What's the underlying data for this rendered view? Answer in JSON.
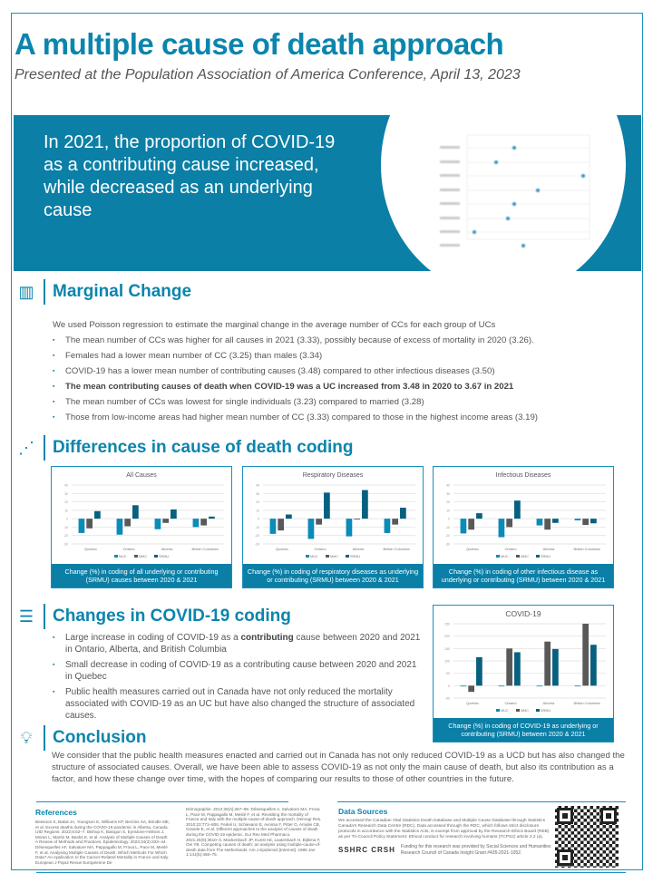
{
  "title": "A multiple cause of death approach",
  "subtitle": "Presented at the Population Association of America Conference, April 13, 2023",
  "hero": {
    "text": "In 2021, the proportion of COVID-19 as a contributing cause increased, while decreased as an underlying cause"
  },
  "marginal": {
    "heading": "Marginal Change",
    "intro": "We used Poisson regression to estimate the marginal change in the average number of CCs for each group of UCs",
    "bullets": [
      "The mean number of CCs was higher for all causes in 2021 (3.33), possibly because of excess of mortality in 2020 (3.26).",
      "Females had a lower mean number of CC (3.25) than males (3.34)",
      "COVID-19 has a lower mean number of contributing causes (3.48) compared to other infectious diseases (3.50)",
      "The mean contributing causes of death when COVID-19 was a UC increased from 3.48 in 2020 to 3.67 in 2021",
      "The mean number of CCs was lowest for single individuals (3.23) compared to married (3.28)",
      "Those from low-income areas had higher mean number of CC (3.33) compared to those in the highest income areas (3.19)"
    ]
  },
  "differences": {
    "heading": "Differences in cause of death coding"
  },
  "covid": {
    "heading": "Changes in COVID-19 coding",
    "b1_pre": "Large increase in coding of COVID-19 as a ",
    "b1_bold": "contributing",
    "b1_post": " cause between 2020 and 2021 in Ontario, Alberta, and British Columbia",
    "b2": "Small decrease in coding of COVID-19 as a contributing cause between 2020 and 2021 in Quebec",
    "b3": "Public health measures carried out in Canada have not only reduced the mortality associated with COVID-19 as an UC but have also changed the structure of associated causes."
  },
  "conclusion": {
    "heading": "Conclusion",
    "text": "We consider that the public health measures enacted and carried out in Canada has not only reduced COVID-19 as a UCD but has also changed the structure of associated causes. Overall, we have been able to assess COVID-19 as not only the main cause of death, but also its contribution as a factor, and how these change over time, with the hopes of comparing our results to those of other countries in the future."
  },
  "references": {
    "heading": "References",
    "col1": "Beesoon S, Bakal JA, Youngson E, Williams KP, Berzins SA, Brindle ME, et al. Excess deaths during the COVID-19 pandemic in Alberta, Canada. IJID Regions. 2022;5:62–7. Bishop K, Balogun S, Eynstone-Hinkins J, Moran L, Martin M, Banks E, et al. Analysis of Multiple Causes of Death: A Review of Methods and Practices. Epidemiology. 2023;34(3):333–44. Désesquelles AF, Salvatore MA, Pappagallo M, Frova L, Pace M, Meslé F, et al. Analysing Multiple Causes of Death: Which Methods For Which Data? An Application to the Cancer-Related Mortality in France and Italy. European J Popul Revue Européenne De",
    "col2": "Démographie. 2012;28(4):467–98. Désesquelles A, Salvatore MA, Frova L, Pace M, Pappagallo M, Meslé F, et al. Revisiting the mortality of France and Italy with the multiple-cause-of-death approach. Demogr Res. 2010;23:771–806. Fedeli U, Schievano E, Avossa F, Pitter G, Amidei CB, Grande E, et al. Different approaches to the analysis of causes of death during the COVID-19 epidemic. Eur Rev Med Pharmaco. 2021;25(9):3610–3. Mackenbach JP, Kunst AE, Lautenbach H, Bijlsma F, Oei YB. Competing causes of death: an analysis using multiple-cause-of-death data from The Netherlands. Am J Epidemiol [Internet]. 1995 Jan 1;141(5):466–75."
  },
  "data_sources": {
    "heading": "Data Sources",
    "text": "We accessed the Canadian Vital Statistics Death Database and Multiple Cause Database through Statistics Canada's Research Data Centre (RDC). Data accessed through the RDC, which follows strict disclosure protocols in accordance with the Statistics Acts, is exempt from approval by the Research Ethics Board (REB) as per Tri-Council Policy Statement: Ethical conduct for research involving humans (TCPS2) article 2.2 (a).",
    "funder_logo": "SSHRC CRSH",
    "funding": "Funding for this research was provided by Social Sciences and Humanities Research Council of Canada Insight Grant #435-2021-1052."
  },
  "colors": {
    "accent": "#0b85ad",
    "MUC": "#0b8bb8",
    "MMC": "#595959",
    "SRMU": "#07607f"
  },
  "chart_data": [
    {
      "type": "bar",
      "title": "All Causes",
      "categories": [
        "Quebec",
        "Ontario",
        "Alberta",
        "British Columbia"
      ],
      "ylim": [
        -30,
        40
      ],
      "yticks": [
        40,
        30,
        20,
        10,
        0,
        -10,
        -20,
        -30
      ],
      "series": [
        {
          "name": "MUC",
          "values": [
            -17,
            -19,
            -12.5,
            -10
          ]
        },
        {
          "name": "MMC",
          "values": [
            -11.5,
            -9,
            -5,
            -8
          ]
        },
        {
          "name": "SRMU",
          "values": [
            9,
            16,
            11,
            2.5
          ]
        }
      ],
      "caption": "Change (%) in coding of all underlying or contributing (SRMU) causes between 2020 & 2021"
    },
    {
      "type": "bar",
      "title": "Respiratory Diseases",
      "categories": [
        "Quebec",
        "Ontario",
        "Alberta",
        "British Columbia"
      ],
      "ylim": [
        -30,
        40
      ],
      "yticks": [
        40,
        30,
        20,
        10,
        0,
        -10,
        -20,
        -30
      ],
      "series": [
        {
          "name": "MUC",
          "values": [
            -18,
            -24,
            -21,
            -17
          ]
        },
        {
          "name": "MMC",
          "values": [
            -14,
            -7,
            -1,
            -7
          ]
        },
        {
          "name": "SRMU",
          "values": [
            5,
            31,
            34,
            13
          ]
        }
      ],
      "caption": "Change (%) in coding of respiratory diseases as underlying or contributing (SRMU) between 2020 & 2021"
    },
    {
      "type": "bar",
      "title": "Infectious Diseases",
      "categories": [
        "Quebec",
        "Ontario",
        "Alberta",
        "British Columbia"
      ],
      "ylim": [
        -30,
        40
      ],
      "yticks": [
        40,
        30,
        20,
        10,
        0,
        -10,
        -20,
        -30
      ],
      "series": [
        {
          "name": "MUC",
          "values": [
            -17.5,
            -22,
            -8,
            -2
          ]
        },
        {
          "name": "MMC",
          "values": [
            -13,
            -10,
            -13,
            -7.5
          ]
        },
        {
          "name": "SRMU",
          "values": [
            6.5,
            21.5,
            -5,
            -5.5
          ]
        }
      ],
      "caption": "Change (%) in coding of other infectious disease as underlying or contributing (SRMU)  between 2020 & 2021"
    },
    {
      "type": "bar",
      "title": "COVID-19",
      "categories": [
        "Quebec",
        "Ontario",
        "Alberta",
        "British Columbia"
      ],
      "ylim": [
        -50,
        250
      ],
      "yticks": [
        250,
        200,
        150,
        100,
        50,
        0,
        -50
      ],
      "series": [
        {
          "name": "MUC",
          "values": [
            -3,
            0,
            0,
            0
          ]
        },
        {
          "name": "MMC",
          "values": [
            -25,
            150,
            178,
            250
          ]
        },
        {
          "name": "SRMU",
          "values": [
            115,
            135,
            148,
            165
          ]
        }
      ],
      "caption": "Change (%) in coding of COVID-19 as underlying or contributing (SRMU) between 2020 & 2021"
    }
  ]
}
